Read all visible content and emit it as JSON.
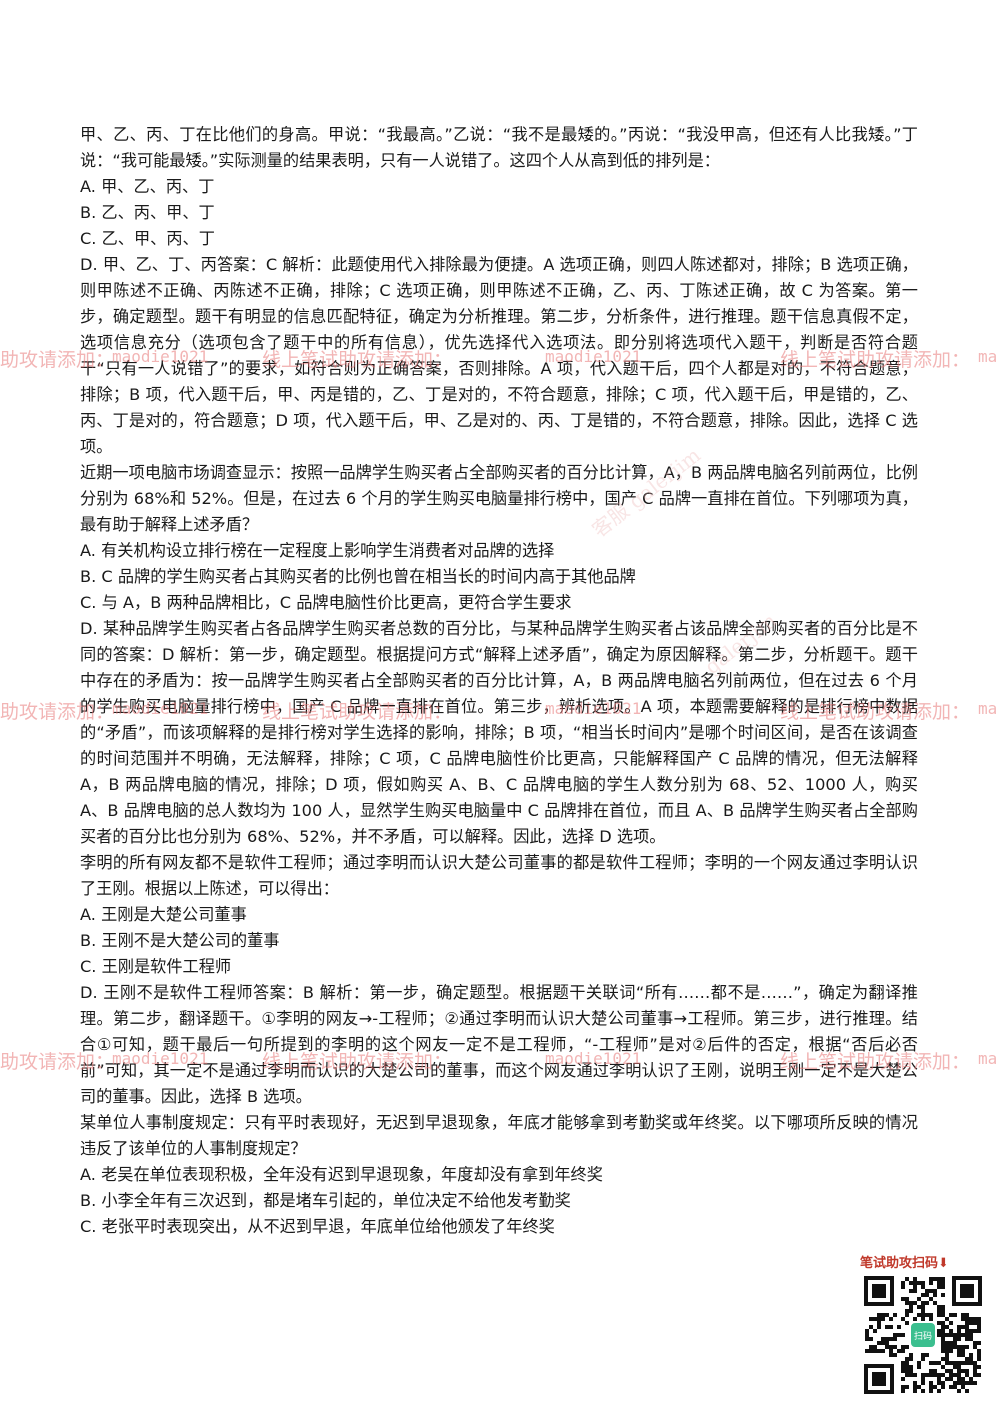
{
  "paragraphs": [
    "甲、乙、丙、丁在比他们的身高。甲说：“我最高。”乙说：“我不是最矮的。”丙说：“我没甲高，但还有人比我矮。”丁说：“我可能最矮。”实际测量的结果表明，只有一人说错了。这四个人从高到低的排列是：",
    "A. 甲、乙、丙、丁",
    "B. 乙、丙、甲、丁",
    "C. 乙、甲、丙、丁",
    "D. 甲、乙、丁、丙答案：C 解析：此题使用代入排除最为便捷。A 选项正确，则四人陈述都对，排除；B 选项正确，则甲陈述不正确、丙陈述不正确，排除；C 选项正确，则甲陈述不正确，乙、丙、丁陈述正确，故 C 为答案。第一步，确定题型。题干有明显的信息匹配特征，确定为分析推理。第二步，分析条件，进行推理。题干信息真假不定，选项信息充分（选项包含了题干中的所有信息），优先选择代入选项法。即分别将选项代入题干，判断是否符合题干“只有一人说错了”的要求，如符合则为正确答案，否则排除。A 项，代入题干后，四个人都是对的，不符合题意，排除；B 项，代入题干后，甲、丙是错的，乙、丁是对的，不符合题意，排除；C 项，代入题干后，甲是错的，乙、丙、丁是对的，符合题意；D 项，代入题干后，甲、乙是对的、丙、丁是错的，不符合题意，排除。因此，选择 C 选项。",
    "近期一项电脑市场调查显示：按照一品牌学生购买者占全部购买者的百分比计算，A，B 两品牌电脑名列前两位，比例分别为 68%和 52%。但是，在过去 6 个月的学生购买电脑量排行榜中，国产 C 品牌一直排在首位。下列哪项为真，最有助于解释上述矛盾？",
    "A. 有关机构设立排行榜在一定程度上影响学生消费者对品牌的选择",
    "B. C 品牌的学生购买者占其购买者的比例也曾在相当长的时间内高于其他品牌",
    "C. 与 A，B 两种品牌相比，C 品牌电脑性价比更高，更符合学生要求",
    "D. 某种品牌学生购买者占各品牌学生购买者总数的百分比，与某种品牌学生购买者占该品牌全部购买者的百分比是不同的答案：D 解析：第一步，确定题型。根据提问方式“解释上述矛盾”，确定为原因解释。第二步，分析题干。题干中存在的矛盾为：按一品牌学生购买者占全部购买者的百分比计算，A，B 两品牌电脑名列前两位，但在过去 6 个月的学生购买电脑量排行榜中，国产 C 品牌一直排在首位。第三步，辨析选项。A 项，本题需要解释的是排行榜中数据的“矛盾”，而该项解释的是排行榜对学生选择的影响，排除；B 项，“相当长时间内”是哪个时间区间，是否在该调查的时间范围并不明确，无法解释，排除；C 项，C 品牌电脑性价比更高，只能解释国产 C 品牌的情况，但无法解释 A，B 两品牌电脑的情况，排除；D 项，假如购买 A、B、C 品牌电脑的学生人数分别为 68、52、1000 人，购买 A、B 品牌电脑的总人数均为 100 人，显然学生购买电脑量中 C 品牌排在首位，而且 A、B 品牌学生购买者占全部购买者的百分比也分别为 68%、52%，并不矛盾，可以解释。因此，选择 D 选项。",
    "李明的所有网友都不是软件工程师；通过李明而认识大楚公司董事的都是软件工程师；李明的一个网友通过李明认识了王刚。根据以上陈述，可以得出：",
    "A. 王刚是大楚公司董事",
    "B. 王刚不是大楚公司的董事",
    "C. 王刚是软件工程师",
    "D. 王刚不是软件工程师答案：B 解析：第一步，确定题型。根据题干关联词“所有……都不是……”，确定为翻译推理。第二步，翻译题干。①李明的网友→-工程师；②通过李明而认识大楚公司董事→工程师。第三步，进行推理。结合①可知，题干最后一句所提到的李明的这个网友一定不是工程师，“-工程师”是对②后件的否定，根据“否后必否前”可知，其一定不是通过李明而认识的大楚公司的董事，而这个网友通过李明认识了王刚，说明王刚一定不是大楚公司的董事。因此，选择 B 选项。",
    "某单位人事制度规定：只有平时表现好，无迟到早退现象，年底才能够拿到考勤奖或年终奖。以下哪项所反映的情况违反了该单位的人事制度规定？",
    "A. 老吴在单位表现积极，全年没有迟到早退现象，年度却没有拿到年终奖",
    "B. 小李全年有三次迟到，都是堵车引起的，单位决定不给他发考勤奖",
    "C. 老张平时表现突出，从不迟到早退，年底单位给他颁发了年终奖"
  ],
  "watermark": {
    "cn": "助攻请添加：",
    "cn_line": "线上笔试助攻请添加：",
    "id": "maodie1021",
    "short": "ma",
    "diag_cn": "客服",
    "diag_id": "galerjim"
  },
  "qr": {
    "caption": "笔试助攻扫码⬇",
    "badge": "扫码"
  }
}
